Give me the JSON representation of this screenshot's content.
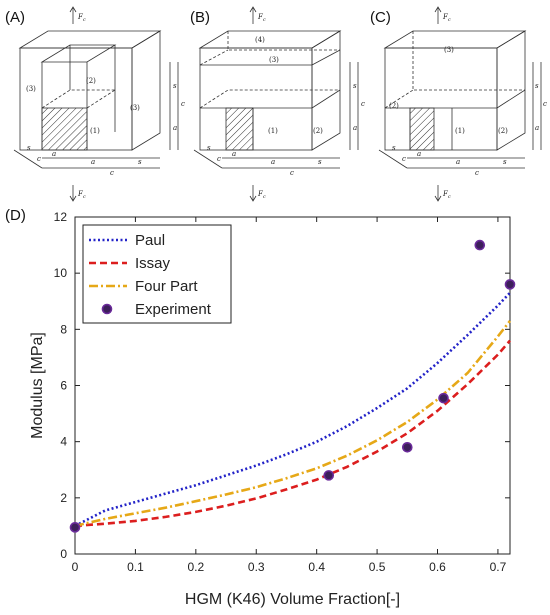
{
  "schematics": {
    "panel_a": {
      "label": "(A)",
      "force_top": "F",
      "force_top_sub": "c",
      "force_bottom": "F",
      "force_bottom_sub": "c",
      "regions": [
        "(3)",
        "(2)",
        "(3)",
        "(1)"
      ],
      "dims_right": [
        "s",
        "c",
        "a"
      ],
      "dims_bottom": [
        "a",
        "s",
        "c"
      ],
      "dims_depth": [
        "s",
        "c",
        "a"
      ]
    },
    "panel_b": {
      "label": "(B)",
      "force_top": "F",
      "force_top_sub": "c",
      "force_bottom": "F",
      "force_bottom_sub": "c",
      "regions": [
        "(4)",
        "(3)",
        "(1)",
        "(2)"
      ],
      "dims_right": [
        "s",
        "c",
        "a"
      ],
      "dims_bottom": [
        "a",
        "s",
        "c"
      ],
      "dims_depth": [
        "s",
        "c",
        "a"
      ]
    },
    "panel_c": {
      "label": "(C)",
      "force_top": "F",
      "force_top_sub": "c",
      "force_bottom": "F",
      "force_bottom_sub": "c",
      "regions": [
        "(3)",
        "(2)",
        "(1)",
        "(2)"
      ],
      "dims_right": [
        "s",
        "c",
        "a"
      ],
      "dims_bottom": [
        "a",
        "s",
        "c"
      ],
      "dims_depth": [
        "s",
        "c",
        "a"
      ]
    }
  },
  "chart_data": {
    "panel_label": "(D)",
    "type": "line",
    "xlabel": "HGM (K46) Volume Fraction[-]",
    "ylabel": "Modulus [MPa]",
    "xlim": [
      0,
      0.72
    ],
    "ylim": [
      0,
      12
    ],
    "xticks": [
      0,
      0.1,
      0.2,
      0.3,
      0.4,
      0.5,
      0.6,
      0.7
    ],
    "xtick_labels": [
      "0",
      "0.1",
      "0.2",
      "0.3",
      "0.4",
      "0.5",
      "0.6",
      "0.7"
    ],
    "yticks": [
      0,
      2,
      4,
      6,
      8,
      10,
      12
    ],
    "ytick_labels": [
      "0",
      "2",
      "4",
      "6",
      "8",
      "10",
      "12"
    ],
    "grid": false,
    "legend_position": "top-left",
    "series": [
      {
        "name": "Paul",
        "style": "dotted",
        "color": "#2323c8",
        "x": [
          0,
          0.05,
          0.1,
          0.15,
          0.2,
          0.25,
          0.3,
          0.35,
          0.4,
          0.45,
          0.5,
          0.55,
          0.6,
          0.65,
          0.7,
          0.72
        ],
        "y": [
          1.0,
          1.55,
          1.85,
          2.15,
          2.45,
          2.8,
          3.15,
          3.55,
          4.0,
          4.55,
          5.2,
          5.9,
          6.8,
          7.8,
          8.85,
          9.3
        ]
      },
      {
        "name": "Issay",
        "style": "dashed",
        "color": "#dc1e1e",
        "x": [
          0,
          0.05,
          0.1,
          0.15,
          0.2,
          0.25,
          0.3,
          0.35,
          0.4,
          0.45,
          0.5,
          0.55,
          0.6,
          0.65,
          0.7,
          0.72
        ],
        "y": [
          1.0,
          1.08,
          1.18,
          1.32,
          1.5,
          1.72,
          1.98,
          2.3,
          2.65,
          3.1,
          3.65,
          4.3,
          5.1,
          6.05,
          7.1,
          7.6
        ]
      },
      {
        "name": "Four Part",
        "style": "dashdot",
        "color": "#e6a817",
        "x": [
          0,
          0.05,
          0.1,
          0.15,
          0.2,
          0.25,
          0.3,
          0.35,
          0.4,
          0.45,
          0.5,
          0.55,
          0.6,
          0.65,
          0.7,
          0.72
        ],
        "y": [
          1.0,
          1.25,
          1.45,
          1.65,
          1.88,
          2.12,
          2.38,
          2.7,
          3.05,
          3.5,
          4.05,
          4.7,
          5.5,
          6.45,
          7.75,
          8.3
        ]
      },
      {
        "name": "Experiment",
        "style": "markers",
        "color": "#3c1f5a",
        "edge_color": "#6a2a9a",
        "x": [
          0,
          0.42,
          0.55,
          0.61,
          0.67,
          0.72
        ],
        "y": [
          0.95,
          2.8,
          3.8,
          5.55,
          11.0,
          9.6
        ]
      }
    ]
  }
}
